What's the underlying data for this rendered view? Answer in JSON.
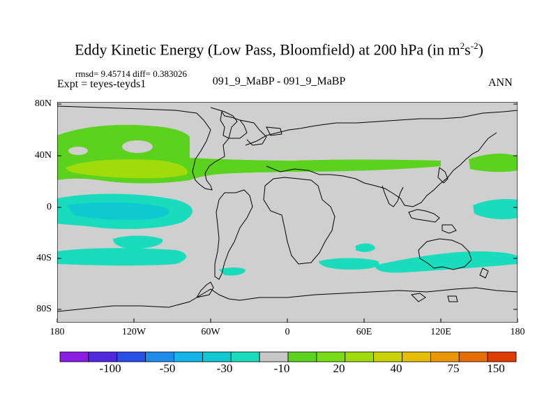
{
  "title": {
    "main": "Eddy Kinetic Energy (Low Pass, Bloomfield) at 200 hPa (in m",
    "sup1": "2",
    "mid": "s",
    "sup2": "-2",
    "end": ")"
  },
  "stats": "rmsd= 9.45714 diff= 0.383026",
  "expt": "Expt = teyes-teyds1",
  "case": "091_9_MaBP - 091_9_MaBP",
  "period": "ANN",
  "lat_labels": [
    "80N",
    "40N",
    "0",
    "40S",
    "80S"
  ],
  "lon_labels": [
    "180",
    "120W",
    "60W",
    "0",
    "60E",
    "120E",
    "180"
  ],
  "colorbar": {
    "colors": [
      "#8a1ee6",
      "#5028e0",
      "#2850e8",
      "#1e8cec",
      "#14b4e6",
      "#10c8d0",
      "#18dcbc",
      "#c8c8c8",
      "#5ad21e",
      "#7adc14",
      "#a0dc0a",
      "#c8d200",
      "#e6be00",
      "#ec9600",
      "#e66e00",
      "#e03c00"
    ],
    "labels": [
      "-100",
      "-50",
      "-30",
      "-10",
      "20",
      "40",
      "75",
      "150"
    ]
  },
  "map_colors": {
    "background": "#cfcfcf",
    "green": "#5ad21e",
    "yellowgreen": "#a0dc0a",
    "teal": "#18dcbc",
    "cyan": "#10c8d0",
    "coast": "#000000"
  }
}
